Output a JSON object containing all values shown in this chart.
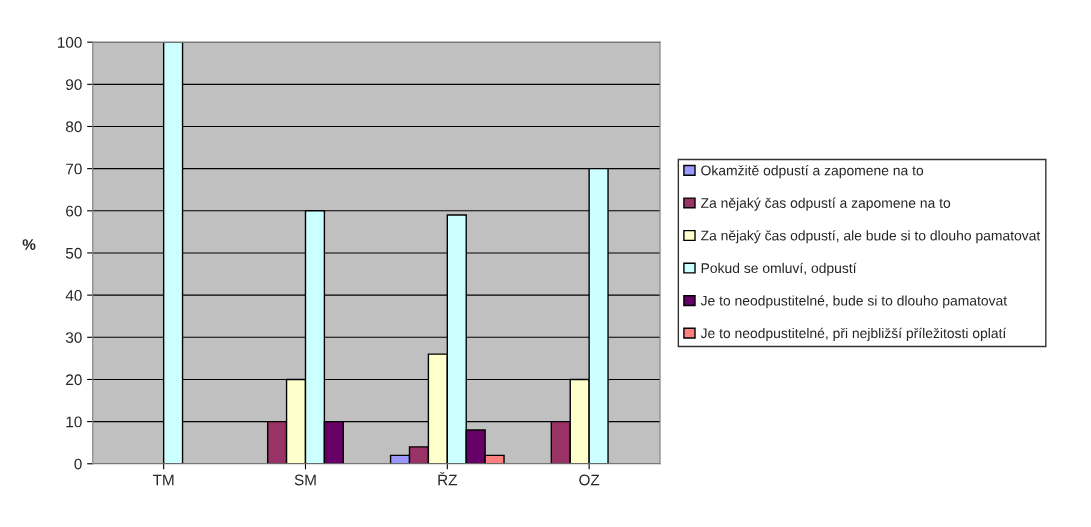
{
  "chart_data": {
    "type": "bar",
    "ylabel": "%",
    "categories": [
      "TM",
      "SM",
      "ŘZ",
      "OZ"
    ],
    "series": [
      {
        "name": "Okamžitě odpustí a zapomene na to",
        "color": "#9999ff",
        "values": [
          0,
          0,
          2,
          0
        ]
      },
      {
        "name": "Za nějaký čas odpustí a zapomene na to",
        "color": "#993366",
        "values": [
          0,
          10,
          4,
          10
        ]
      },
      {
        "name": "Za nějaký čas odpustí, ale bude si to dlouho pamatovat",
        "color": "#ffffcc",
        "values": [
          0,
          20,
          26,
          20
        ]
      },
      {
        "name": "Pokud se omluví, odpustí",
        "color": "#ccffff",
        "values": [
          100,
          60,
          59,
          70
        ]
      },
      {
        "name": "Je to neodpustitelné, bude si to dlouho pamatovat",
        "color": "#660066",
        "values": [
          0,
          10,
          8,
          0
        ]
      },
      {
        "name": "Je to neodpustitelné, při nejbližší příležitosti oplatí",
        "color": "#ff8080",
        "values": [
          0,
          0,
          2,
          0
        ]
      }
    ],
    "ylim": [
      0,
      100
    ],
    "yticks": [
      0,
      10,
      20,
      30,
      40,
      50,
      60,
      70,
      80,
      90,
      100
    ],
    "grid": "y",
    "legend": "right"
  }
}
